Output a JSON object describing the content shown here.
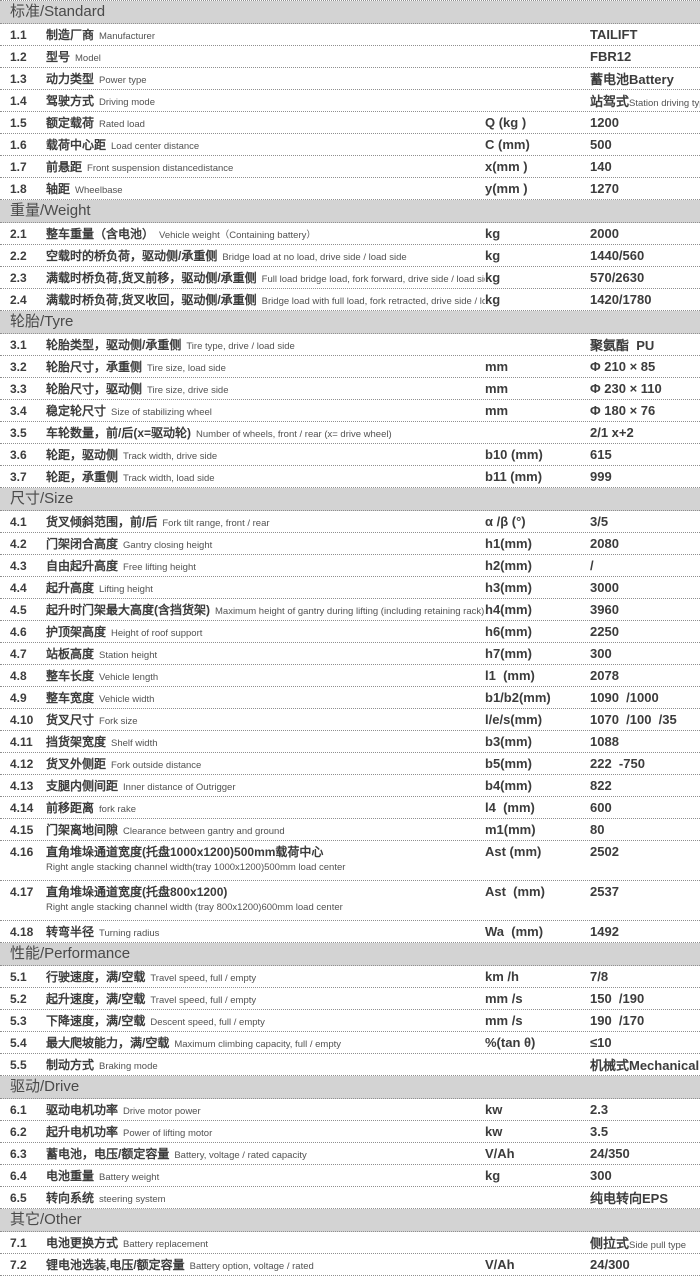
{
  "colors": {
    "header_bg": "#d3d3d3",
    "header_text": "#4a4a4a",
    "divider": "#8f8f8f",
    "text": "#3c3c3c"
  },
  "product": {
    "manufacturer": "TAILIFT",
    "model": "FBR12"
  },
  "sections": [
    {
      "title": "标准/Standard",
      "rows": [
        {
          "no": "1.1",
          "zh": "制造厂商",
          "en": "Manufacturer",
          "sym": "",
          "val": "TAILIFT"
        },
        {
          "no": "1.2",
          "zh": "型号",
          "en": "Model",
          "sym": "",
          "val": "FBR12"
        },
        {
          "no": "1.3",
          "zh": "动力类型",
          "en": "Power type",
          "sym": "",
          "val": "蓄电池Battery"
        },
        {
          "no": "1.4",
          "zh": "驾驶方式",
          "en": "Driving mode",
          "sym": "",
          "val": "站驾式",
          "val_sub": "Station driving type"
        },
        {
          "no": "1.5",
          "zh": "额定载荷",
          "en": "Rated load",
          "sym": "Q (kg )",
          "val": "1200"
        },
        {
          "no": "1.6",
          "zh": "载荷中心距",
          "en": "Load center distance",
          "sym": "C (mm)",
          "val": "500"
        },
        {
          "no": "1.7",
          "zh": "前悬距",
          "en": "Front suspension distancedistance",
          "sym": "x(mm )",
          "val": "140"
        },
        {
          "no": "1.8",
          "zh": "轴距",
          "en": "Wheelbase",
          "sym": "y(mm )",
          "val": "1270"
        }
      ]
    },
    {
      "title": "重量/Weight",
      "rows": [
        {
          "no": "2.1",
          "zh": "整车重量（含电池）",
          "en": "Vehicle weight（Containing battery）",
          "sym": "kg",
          "val": "2000"
        },
        {
          "no": "2.2",
          "zh": "空载时的桥负荷，驱动侧/承重侧",
          "en": "Bridge load at no load, drive side / load side",
          "sym": "kg",
          "val": "1440/560"
        },
        {
          "no": "2.3",
          "zh": "满载时桥负荷,货叉前移，驱动侧/承重侧",
          "en": "Full load bridge load, fork forward, drive side / load side",
          "sym": "kg",
          "val": "570/2630"
        },
        {
          "no": "2.4",
          "zh": "满载时桥负荷,货叉收回，驱动侧/承重侧",
          "en": "Bridge load with full load, fork retracted, drive side / load side",
          "sym": "kg",
          "val": "1420/1780"
        }
      ]
    },
    {
      "title": "轮胎/Tyre",
      "rows": [
        {
          "no": "3.1",
          "zh": "轮胎类型，驱动侧/承重侧",
          "en": "Tire type, drive / load side",
          "sym": "",
          "val": "聚氨酯  PU"
        },
        {
          "no": "3.2",
          "zh": "轮胎尺寸，承重侧",
          "en": "Tire size, load side",
          "sym": "mm",
          "val": "Φ 210 × 85"
        },
        {
          "no": "3.3",
          "zh": "轮胎尺寸，驱动侧",
          "en": "Tire size, drive side",
          "sym": "mm",
          "val": "Φ 230 × 110"
        },
        {
          "no": "3.4",
          "zh": "稳定轮尺寸",
          "en": "Size of stabilizing wheel",
          "sym": "mm",
          "val": "Φ 180 × 76"
        },
        {
          "no": "3.5",
          "zh": "车轮数量，前/后(x=驱动轮)",
          "en": "Number of wheels, front / rear (x= drive wheel)",
          "sym": "",
          "val": "2/1 x+2"
        },
        {
          "no": "3.6",
          "zh": "轮距，驱动侧",
          "en": "Track width, drive side",
          "sym": "b10 (mm)",
          "val": "615"
        },
        {
          "no": "3.7",
          "zh": "轮距，承重侧",
          "en": "Track width, load side",
          "sym": "b11 (mm)",
          "val": "999"
        }
      ]
    },
    {
      "title": "尺寸/Size",
      "rows": [
        {
          "no": "4.1",
          "zh": "货叉倾斜范围，前/后",
          "en": "Fork tilt range, front / rear",
          "sym": "α /β (°)",
          "val": "3/5"
        },
        {
          "no": "4.2",
          "zh": "门架闭合高度",
          "en": "Gantry closing height",
          "sym": "h1(mm)",
          "val": "2080"
        },
        {
          "no": "4.3",
          "zh": "自由起升高度",
          "en": "Free lifting height",
          "sym": "h2(mm)",
          "val": "/"
        },
        {
          "no": "4.4",
          "zh": "起升高度",
          "en": "Lifting height",
          "sym": "h3(mm)",
          "val": "3000"
        },
        {
          "no": "4.5",
          "zh": "起升时门架最大高度(含挡货架)",
          "en": "Maximum height of gantry during lifting (including retaining rack)",
          "sym": "h4(mm)",
          "val": "3960"
        },
        {
          "no": "4.6",
          "zh": "护顶架高度",
          "en": "Height of roof support",
          "sym": "h6(mm)",
          "val": "2250"
        },
        {
          "no": "4.7",
          "zh": "站板高度",
          "en": "Station height",
          "sym": "h7(mm)",
          "val": "300"
        },
        {
          "no": "4.8",
          "zh": "整车长度",
          "en": "Vehicle length",
          "sym": "l1  (mm)",
          "val": "2078"
        },
        {
          "no": "4.9",
          "zh": "整车宽度",
          "en": "Vehicle width",
          "sym": "b1/b2(mm)",
          "val": "1090  /1000"
        },
        {
          "no": "4.10",
          "zh": "货叉尺寸",
          "en": "Fork size",
          "sym": "l/e/s(mm)",
          "val": "1070  /100  /35"
        },
        {
          "no": "4.11",
          "zh": "挡货架宽度",
          "en": "Shelf width",
          "sym": "b3(mm)",
          "val": "1088"
        },
        {
          "no": "4.12",
          "zh": "货叉外侧距",
          "en": "Fork outside distance",
          "sym": "b5(mm)",
          "val": "222  -750"
        },
        {
          "no": "4.13",
          "zh": "支腿内侧间距",
          "en": "Inner distance of Outrigger",
          "sym": "b4(mm)",
          "val": "822"
        },
        {
          "no": "4.14",
          "zh": "前移距离",
          "en": "fork rake",
          "sym": "l4  (mm)",
          "val": "600"
        },
        {
          "no": "4.15",
          "zh": "门架离地间隙",
          "en": "Clearance between gantry and ground",
          "sym": "m1(mm)",
          "val": "80"
        },
        {
          "no": "4.16",
          "tall": true,
          "zh": "直角堆垛通道宽度(托盘1000x1200)500mm载荷中心",
          "en": "Right angle stacking channel width(tray 1000x1200)500mm load center",
          "sym": "Ast (mm)",
          "val": "2502"
        },
        {
          "no": "4.17",
          "tall": true,
          "zh": "直角堆垛通道宽度(托盘800x1200)",
          "en": "Right angle stacking channel width (tray 800x1200)600mm load center",
          "sym": "Ast  (mm)",
          "val": "2537"
        },
        {
          "no": "4.18",
          "zh": "转弯半径",
          "en": "Turning radius",
          "sym": "Wa  (mm)",
          "val": "1492"
        }
      ]
    },
    {
      "title": "性能/Performance",
      "rows": [
        {
          "no": "5.1",
          "zh": "行驶速度，满/空载",
          "en": "Travel speed, full / empty",
          "sym": "km /h",
          "val": "7/8"
        },
        {
          "no": "5.2",
          "zh": "起升速度，满/空载",
          "en": "Travel speed, full / empty",
          "sym": "mm /s",
          "val": "150  /190"
        },
        {
          "no": "5.3",
          "zh": "下降速度，满/空载",
          "en": "Descent speed, full / empty",
          "sym": "mm /s",
          "val": "190  /170"
        },
        {
          "no": "5.4",
          "zh": "最大爬坡能力，满/空载",
          "en": "Maximum climbing capacity, full / empty",
          "sym": "%(tan θ)",
          "val": "≤10"
        },
        {
          "no": "5.5",
          "zh": "制动方式",
          "en": "Braking mode",
          "sym": "",
          "val": "机械式Mechanical"
        }
      ]
    },
    {
      "title": "驱动/Drive",
      "rows": [
        {
          "no": "6.1",
          "zh": "驱动电机功率",
          "en": "Drive motor power",
          "sym": "kw",
          "val": "2.3"
        },
        {
          "no": "6.2",
          "zh": "起升电机功率",
          "en": "Power of lifting motor",
          "sym": "kw",
          "val": "3.5"
        },
        {
          "no": "6.3",
          "zh": "蓄电池，电压/额定容量",
          "en": "Battery, voltage / rated capacity",
          "sym": "V/Ah",
          "val": "24/350"
        },
        {
          "no": "6.4",
          "zh": "电池重量",
          "en": "Battery weight",
          "sym": "kg",
          "val": "300"
        },
        {
          "no": "6.5",
          "zh": "转向系统",
          "en": "steering system",
          "sym": "",
          "val": "纯电转向EPS"
        }
      ]
    },
    {
      "title": "其它/Other",
      "rows": [
        {
          "no": "7.1",
          "zh": "电池更换方式",
          "en": "Battery replacement",
          "sym": "",
          "val": "侧拉式",
          "val_sub": "Side pull type"
        },
        {
          "no": "7.2",
          "zh": "锂电池选装,电压/额定容量",
          "en": "Battery option, voltage / rated",
          "sym": "V/Ah",
          "val": "24/300"
        }
      ]
    }
  ]
}
